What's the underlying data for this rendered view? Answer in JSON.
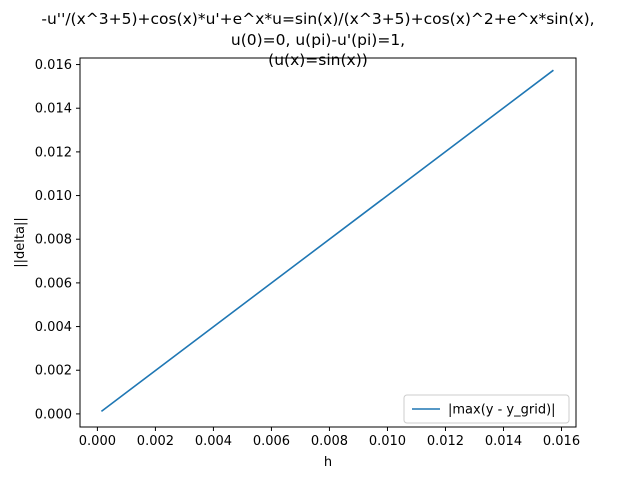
{
  "chart_data": {
    "type": "line",
    "title_lines": [
      "-u''/(x^3+5)+cos(x)*u'+e^x*u=sin(x)/(x^3+5)+cos(x)^2+e^x*sin(x),",
      "u(0)=0, u(pi)-u'(pi)=1,",
      "(u(x)=sin(x))"
    ],
    "xlabel": "h",
    "ylabel": "||delta||",
    "xlim": [
      -0.0006,
      0.0165
    ],
    "ylim": [
      -0.0006,
      0.0163
    ],
    "xticks": [
      0.0,
      0.002,
      0.004,
      0.006,
      0.008,
      0.01,
      0.012,
      0.014,
      0.016
    ],
    "xtick_labels": [
      "0.000",
      "0.002",
      "0.004",
      "0.006",
      "0.008",
      "0.010",
      "0.012",
      "0.014",
      "0.016"
    ],
    "yticks": [
      0.0,
      0.002,
      0.004,
      0.006,
      0.008,
      0.01,
      0.012,
      0.014,
      0.016
    ],
    "ytick_labels": [
      "0.000",
      "0.002",
      "0.004",
      "0.006",
      "0.008",
      "0.010",
      "0.012",
      "0.014",
      "0.016"
    ],
    "grid": false,
    "legend_position": "lower right",
    "series": [
      {
        "name": "|max(y - y_grid)|",
        "color": "#1f77b4",
        "x": [
          0.00016,
          0.0157
        ],
        "y": [
          0.00014,
          0.01572
        ]
      }
    ]
  }
}
